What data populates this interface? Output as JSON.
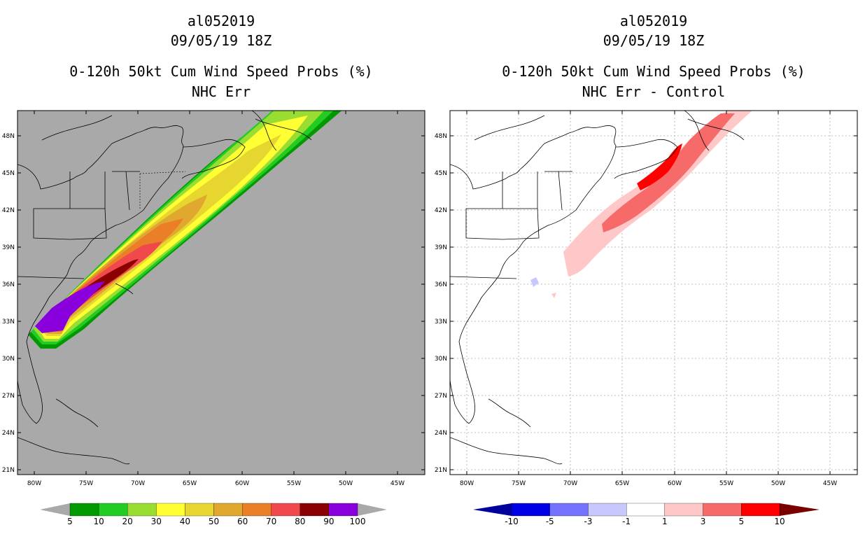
{
  "left_panel": {
    "storm_id": "al052019",
    "datetime": "09/05/19 18Z",
    "product": "0-120h 50kt Cum Wind Speed Probs (%)",
    "subtitle": "NHC Err",
    "background_color": "#a9a9a9",
    "colorbar": {
      "labels": [
        "5",
        "10",
        "20",
        "30",
        "40",
        "50",
        "60",
        "70",
        "80",
        "90",
        "100"
      ],
      "colors": [
        "#009900",
        "#22cc22",
        "#99dd33",
        "#ffff33",
        "#e8d630",
        "#e0a82e",
        "#ea7f28",
        "#f0484c",
        "#8b0000",
        "#8a00dd"
      ],
      "extend_color": "#a9a9a9"
    }
  },
  "right_panel": {
    "storm_id": "al052019",
    "datetime": "09/05/19 18Z",
    "product": "0-120h 50kt Cum Wind Speed Probs (%)",
    "subtitle": "NHC Err - Control",
    "background_color": "#ffffff",
    "colorbar": {
      "labels": [
        "-10",
        "-5",
        "-3",
        "-1",
        "1",
        "3",
        "5",
        "10"
      ],
      "colors": [
        "#0000e6",
        "#7373ff",
        "#c8c8ff",
        "#ffffff",
        "#ffc8c8",
        "#f76a6a",
        "#ff0000"
      ],
      "low_extend_color": "#00009c",
      "high_extend_color": "#7a0000"
    }
  },
  "map": {
    "lat_labels": [
      "48N",
      "45N",
      "42N",
      "39N",
      "36N",
      "33N",
      "30N",
      "27N",
      "24N",
      "21N"
    ],
    "lon_labels": [
      "80W",
      "75W",
      "70W",
      "65W",
      "60W",
      "55W",
      "50W",
      "45W"
    ]
  }
}
